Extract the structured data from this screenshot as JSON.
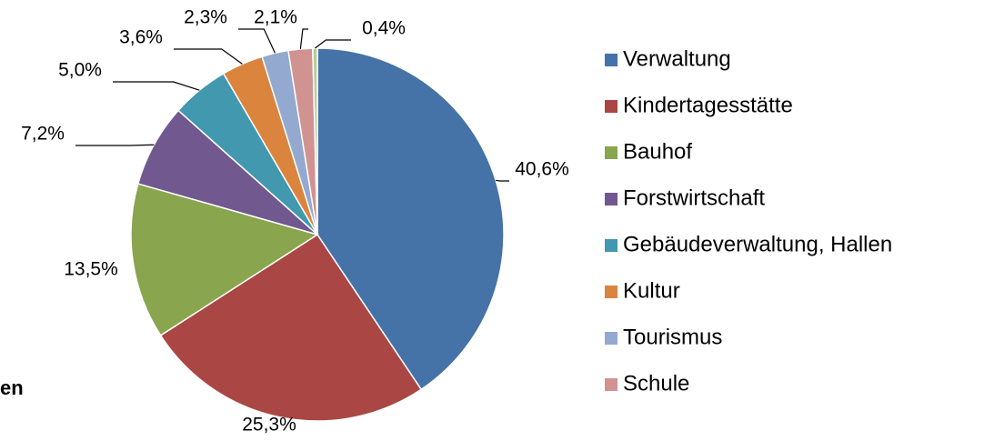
{
  "chart_data": {
    "type": "pie",
    "categories": [
      "Verwaltung",
      "Kindertagesstätte",
      "Bauhof",
      "Forstwirtschaft",
      "Gebäudeverwaltung, Hallen",
      "Kultur",
      "Tourismus",
      "Schule",
      null
    ],
    "values": [
      40.6,
      25.3,
      13.5,
      7.2,
      5.0,
      3.6,
      2.3,
      2.1,
      0.4
    ],
    "value_labels": [
      "40,6%",
      "25,3%",
      "13,5%",
      "7,2%",
      "5,0%",
      "3,6%",
      "2,3%",
      "2,1%",
      "0,4%"
    ],
    "colors": [
      "#4572a7",
      "#aa4643",
      "#89a54e",
      "#71588f",
      "#4198af",
      "#db843d",
      "#93a9cf",
      "#d19392",
      "#b9cd96"
    ],
    "legend": "right",
    "caption": "en"
  }
}
